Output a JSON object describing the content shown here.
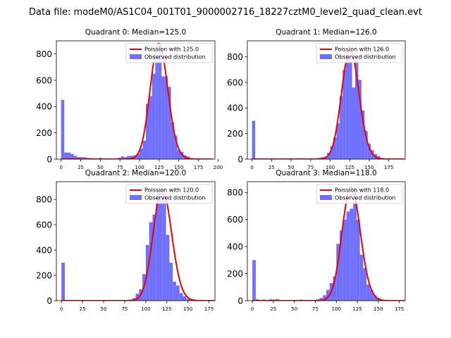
{
  "suptitle": "Data file: modeM0/AS1C04_001T01_9000002716_18227cztM0_level2_quad_clean.evt",
  "colors": {
    "observed": "#7070ff",
    "poisson": "#ee0000"
  },
  "chart_data": [
    {
      "type": "histogram",
      "title": "Quadrant 0: Median=125.0",
      "median": 125.0,
      "xlim": [
        -6,
        196
      ],
      "ylim": [
        0,
        900
      ],
      "xticks": [
        0,
        25,
        50,
        75,
        100,
        125,
        150,
        175,
        200
      ],
      "yticks": [
        0,
        200,
        400,
        600,
        800
      ],
      "bin_width": 4,
      "bins": [
        [
          0,
          450
        ],
        [
          4,
          50
        ],
        [
          8,
          50
        ],
        [
          12,
          40
        ],
        [
          16,
          25
        ],
        [
          20,
          15
        ],
        [
          24,
          15
        ],
        [
          28,
          15
        ],
        [
          32,
          10
        ],
        [
          36,
          8
        ],
        [
          40,
          5
        ],
        [
          44,
          5
        ],
        [
          48,
          10
        ],
        [
          52,
          5
        ],
        [
          56,
          5
        ],
        [
          60,
          5
        ],
        [
          64,
          5
        ],
        [
          68,
          5
        ],
        [
          72,
          10
        ],
        [
          76,
          20
        ],
        [
          80,
          15
        ],
        [
          84,
          25
        ],
        [
          88,
          25
        ],
        [
          92,
          30
        ],
        [
          96,
          40
        ],
        [
          100,
          80
        ],
        [
          104,
          140
        ],
        [
          108,
          420
        ],
        [
          112,
          480
        ],
        [
          116,
          650
        ],
        [
          120,
          780
        ],
        [
          124,
          880
        ],
        [
          128,
          630
        ],
        [
          132,
          630
        ],
        [
          136,
          550
        ],
        [
          140,
          280
        ],
        [
          144,
          180
        ],
        [
          148,
          70
        ],
        [
          152,
          55
        ],
        [
          156,
          30
        ],
        [
          160,
          20
        ],
        [
          164,
          8
        ],
        [
          168,
          4
        ],
        [
          172,
          3
        ],
        [
          176,
          2
        ],
        [
          180,
          1
        ],
        [
          184,
          1
        ]
      ],
      "legend": {
        "poisson": "Poission with 125.0",
        "observed": "Observed distribution"
      }
    },
    {
      "type": "histogram",
      "title": "Quadrant 1: Median=126.0",
      "median": 126.0,
      "xlim": [
        -6,
        196
      ],
      "ylim": [
        0,
        925
      ],
      "xticks": [
        0,
        25,
        50,
        75,
        100,
        125,
        150,
        175
      ],
      "yticks": [
        0,
        200,
        400,
        600,
        800
      ],
      "bin_width": 4,
      "bins": [
        [
          0,
          300
        ],
        [
          4,
          4
        ],
        [
          8,
          3
        ],
        [
          12,
          3
        ],
        [
          16,
          2
        ],
        [
          20,
          2
        ],
        [
          24,
          2
        ],
        [
          28,
          2
        ],
        [
          32,
          2
        ],
        [
          36,
          2
        ],
        [
          40,
          2
        ],
        [
          44,
          2
        ],
        [
          48,
          2
        ],
        [
          52,
          2
        ],
        [
          56,
          2
        ],
        [
          60,
          2
        ],
        [
          64,
          2
        ],
        [
          68,
          2
        ],
        [
          72,
          3
        ],
        [
          76,
          3
        ],
        [
          80,
          5
        ],
        [
          84,
          10
        ],
        [
          88,
          15
        ],
        [
          92,
          20
        ],
        [
          96,
          50
        ],
        [
          100,
          100
        ],
        [
          104,
          170
        ],
        [
          108,
          280
        ],
        [
          112,
          490
        ],
        [
          116,
          700
        ],
        [
          120,
          850
        ],
        [
          124,
          800
        ],
        [
          128,
          560
        ],
        [
          132,
          770
        ],
        [
          136,
          620
        ],
        [
          140,
          380
        ],
        [
          144,
          220
        ],
        [
          148,
          120
        ],
        [
          152,
          70
        ],
        [
          156,
          40
        ],
        [
          160,
          25
        ],
        [
          164,
          10
        ],
        [
          168,
          5
        ],
        [
          172,
          3
        ],
        [
          176,
          2
        ]
      ],
      "legend": {
        "poisson": "Poission with 126.0",
        "observed": "Observed distribution"
      }
    },
    {
      "type": "histogram",
      "title": "Quadrant 2: Median=120.0",
      "median": 120.0,
      "xlim": [
        -6,
        182
      ],
      "ylim": [
        0,
        940
      ],
      "xticks": [
        0,
        25,
        50,
        75,
        100,
        125,
        150,
        175
      ],
      "yticks": [
        0,
        200,
        400,
        600,
        800
      ],
      "bin_width": 4,
      "bins": [
        [
          0,
          300
        ],
        [
          4,
          3
        ],
        [
          8,
          2
        ],
        [
          12,
          2
        ],
        [
          16,
          2
        ],
        [
          20,
          2
        ],
        [
          24,
          2
        ],
        [
          28,
          2
        ],
        [
          32,
          2
        ],
        [
          36,
          2
        ],
        [
          40,
          2
        ],
        [
          44,
          2
        ],
        [
          48,
          2
        ],
        [
          52,
          2
        ],
        [
          56,
          2
        ],
        [
          60,
          2
        ],
        [
          64,
          2
        ],
        [
          68,
          2
        ],
        [
          72,
          3
        ],
        [
          76,
          4
        ],
        [
          80,
          8
        ],
        [
          84,
          20
        ],
        [
          88,
          55
        ],
        [
          92,
          90
        ],
        [
          96,
          210
        ],
        [
          100,
          440
        ],
        [
          104,
          620
        ],
        [
          108,
          680
        ],
        [
          112,
          880
        ],
        [
          116,
          880
        ],
        [
          120,
          850
        ],
        [
          124,
          520
        ],
        [
          128,
          300
        ],
        [
          132,
          150
        ],
        [
          136,
          120
        ],
        [
          140,
          60
        ],
        [
          144,
          35
        ],
        [
          148,
          15
        ],
        [
          152,
          8
        ],
        [
          156,
          4
        ],
        [
          160,
          2
        ],
        [
          164,
          1
        ],
        [
          168,
          1
        ]
      ],
      "legend": {
        "poisson": "Poission with 120.0",
        "observed": "Observed distribution"
      }
    },
    {
      "type": "histogram",
      "title": "Quadrant 3: Median=118.0",
      "median": 118.0,
      "xlim": [
        -6,
        182
      ],
      "ylim": [
        0,
        880
      ],
      "xticks": [
        0,
        25,
        50,
        75,
        100,
        125,
        150,
        175
      ],
      "yticks": [
        0,
        200,
        400,
        600,
        800
      ],
      "bin_width": 4,
      "bins": [
        [
          0,
          300
        ],
        [
          4,
          10
        ],
        [
          8,
          5
        ],
        [
          12,
          8
        ],
        [
          16,
          5
        ],
        [
          20,
          10
        ],
        [
          24,
          8
        ],
        [
          28,
          12
        ],
        [
          32,
          5
        ],
        [
          36,
          4
        ],
        [
          40,
          4
        ],
        [
          44,
          4
        ],
        [
          48,
          4
        ],
        [
          52,
          4
        ],
        [
          56,
          8
        ],
        [
          60,
          5
        ],
        [
          64,
          4
        ],
        [
          68,
          4
        ],
        [
          72,
          5
        ],
        [
          76,
          10
        ],
        [
          80,
          20
        ],
        [
          84,
          40
        ],
        [
          88,
          80
        ],
        [
          92,
          130
        ],
        [
          96,
          180
        ],
        [
          100,
          420
        ],
        [
          104,
          520
        ],
        [
          108,
          600
        ],
        [
          112,
          660
        ],
        [
          116,
          680
        ],
        [
          120,
          840
        ],
        [
          124,
          600
        ],
        [
          128,
          340
        ],
        [
          132,
          240
        ],
        [
          136,
          120
        ],
        [
          140,
          80
        ],
        [
          144,
          40
        ],
        [
          148,
          20
        ],
        [
          152,
          8
        ],
        [
          156,
          4
        ],
        [
          160,
          2
        ],
        [
          164,
          1
        ]
      ],
      "legend": {
        "poisson": "Poission with 118.0",
        "observed": "Observed distribution"
      }
    }
  ]
}
